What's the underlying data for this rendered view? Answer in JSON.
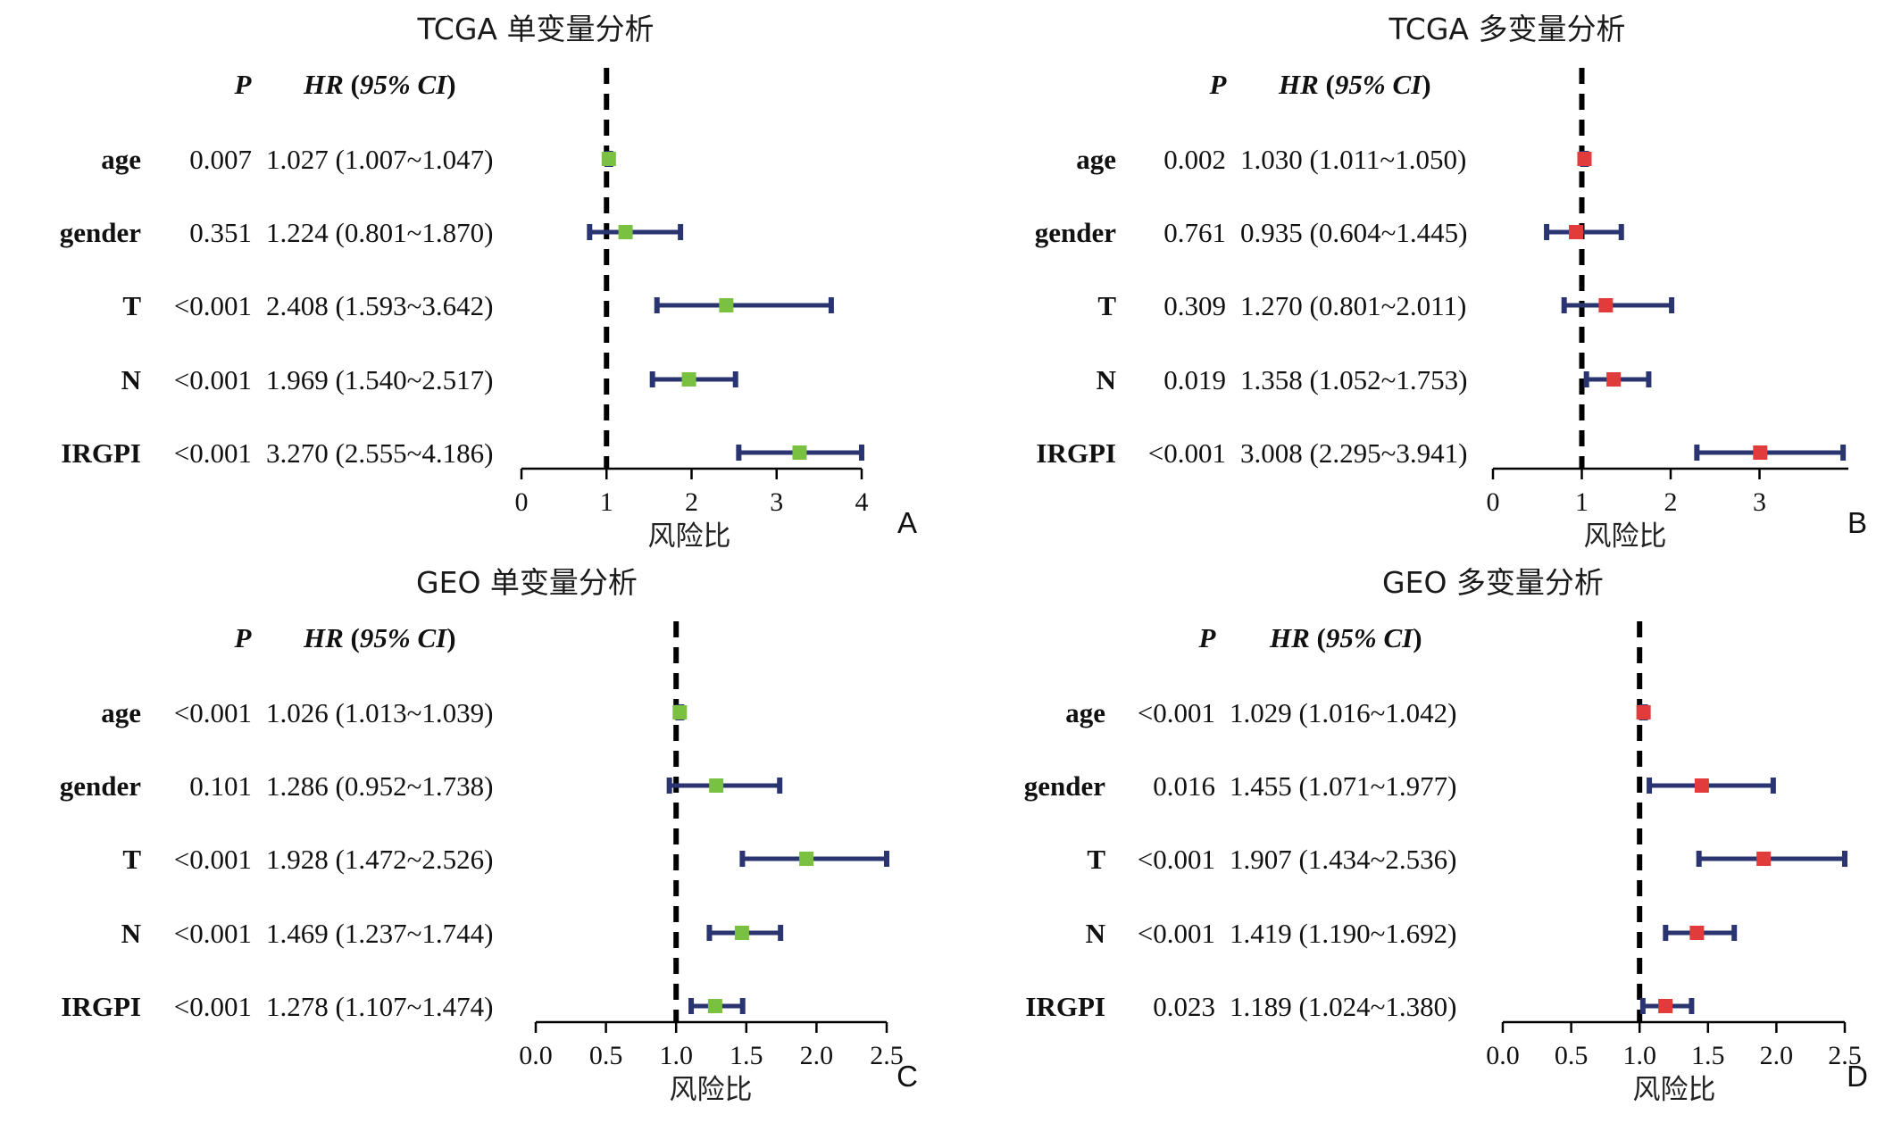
{
  "colors": {
    "ci_line": "#2a3470",
    "univariate_marker": "#7ac142",
    "multivariate_marker": "#e23b3b",
    "axis": "#000000",
    "reference_line": "#000000"
  },
  "chart_data": [
    {
      "type": "forest",
      "panel_label": "A",
      "title": "TCGA 单变量分析",
      "xlabel": "风险比",
      "header": {
        "p": "P",
        "hr": "HR",
        "ci": "95% CI"
      },
      "xlim": [
        0,
        4
      ],
      "ticks": [
        "0",
        "1",
        "2",
        "3",
        "4"
      ],
      "reference": 1,
      "marker": "univariate",
      "rows": [
        {
          "variable": "age",
          "p": "0.007",
          "hr_text": "1.027 (1.007~1.047)",
          "hr": 1.027,
          "lower": 1.007,
          "upper": 1.047
        },
        {
          "variable": "gender",
          "p": "0.351",
          "hr_text": "1.224 (0.801~1.870)",
          "hr": 1.224,
          "lower": 0.801,
          "upper": 1.87
        },
        {
          "variable": "T",
          "p": "<0.001",
          "hr_text": "2.408 (1.593~3.642)",
          "hr": 2.408,
          "lower": 1.593,
          "upper": 3.642
        },
        {
          "variable": "N",
          "p": "<0.001",
          "hr_text": "1.969 (1.540~2.517)",
          "hr": 1.969,
          "lower": 1.54,
          "upper": 2.517
        },
        {
          "variable": "IRGPI",
          "p": "<0.001",
          "hr_text": "3.270 (2.555~4.186)",
          "hr": 3.27,
          "lower": 2.555,
          "upper": 4.186
        }
      ]
    },
    {
      "type": "forest",
      "panel_label": "B",
      "title": "TCGA 多变量分析",
      "xlabel": "风险比",
      "header": {
        "p": "P",
        "hr": "HR",
        "ci": "95% CI"
      },
      "xlim": [
        0,
        4
      ],
      "ticks": [
        "0",
        "1",
        "2",
        "3"
      ],
      "reference": 1,
      "marker": "multivariate",
      "rows": [
        {
          "variable": "age",
          "p": "0.002",
          "hr_text": "1.030 (1.011~1.050)",
          "hr": 1.03,
          "lower": 1.011,
          "upper": 1.05
        },
        {
          "variable": "gender",
          "p": "0.761",
          "hr_text": "0.935 (0.604~1.445)",
          "hr": 0.935,
          "lower": 0.604,
          "upper": 1.445
        },
        {
          "variable": "T",
          "p": "0.309",
          "hr_text": "1.270 (0.801~2.011)",
          "hr": 1.27,
          "lower": 0.801,
          "upper": 2.011
        },
        {
          "variable": "N",
          "p": "0.019",
          "hr_text": "1.358 (1.052~1.753)",
          "hr": 1.358,
          "lower": 1.052,
          "upper": 1.753
        },
        {
          "variable": "IRGPI",
          "p": "<0.001",
          "hr_text": "3.008 (2.295~3.941)",
          "hr": 3.008,
          "lower": 2.295,
          "upper": 3.941
        }
      ]
    },
    {
      "type": "forest",
      "panel_label": "C",
      "title": "GEO 单变量分析",
      "xlabel": "风险比",
      "header": {
        "p": "P",
        "hr": "HR",
        "ci": "95% CI"
      },
      "xlim": [
        0,
        2.5
      ],
      "ticks": [
        "0.0",
        "0.5",
        "1.0",
        "1.5",
        "2.0",
        "2.5"
      ],
      "reference": 1,
      "marker": "univariate",
      "rows": [
        {
          "variable": "age",
          "p": "<0.001",
          "hr_text": "1.026 (1.013~1.039)",
          "hr": 1.026,
          "lower": 1.013,
          "upper": 1.039
        },
        {
          "variable": "gender",
          "p": "0.101",
          "hr_text": "1.286 (0.952~1.738)",
          "hr": 1.286,
          "lower": 0.952,
          "upper": 1.738
        },
        {
          "variable": "T",
          "p": "<0.001",
          "hr_text": "1.928 (1.472~2.526)",
          "hr": 1.928,
          "lower": 1.472,
          "upper": 2.526
        },
        {
          "variable": "N",
          "p": "<0.001",
          "hr_text": "1.469 (1.237~1.744)",
          "hr": 1.469,
          "lower": 1.237,
          "upper": 1.744
        },
        {
          "variable": "IRGPI",
          "p": "<0.001",
          "hr_text": "1.278 (1.107~1.474)",
          "hr": 1.278,
          "lower": 1.107,
          "upper": 1.474
        }
      ]
    },
    {
      "type": "forest",
      "panel_label": "D",
      "title": "GEO 多变量分析",
      "xlabel": "风险比",
      "header": {
        "p": "P",
        "hr": "HR",
        "ci": "95% CI"
      },
      "xlim": [
        0,
        2.5
      ],
      "ticks": [
        "0.0",
        "0.5",
        "1.0",
        "1.5",
        "2.0",
        "2.5"
      ],
      "reference": 1,
      "marker": "multivariate",
      "rows": [
        {
          "variable": "age",
          "p": "<0.001",
          "hr_text": "1.029 (1.016~1.042)",
          "hr": 1.029,
          "lower": 1.016,
          "upper": 1.042
        },
        {
          "variable": "gender",
          "p": "0.016",
          "hr_text": "1.455 (1.071~1.977)",
          "hr": 1.455,
          "lower": 1.071,
          "upper": 1.977
        },
        {
          "variable": "T",
          "p": "<0.001",
          "hr_text": "1.907 (1.434~2.536)",
          "hr": 1.907,
          "lower": 1.434,
          "upper": 2.536
        },
        {
          "variable": "N",
          "p": "<0.001",
          "hr_text": "1.419 (1.190~1.692)",
          "hr": 1.419,
          "lower": 1.19,
          "upper": 1.692
        },
        {
          "variable": "IRGPI",
          "p": "0.023",
          "hr_text": "1.189 (1.024~1.380)",
          "hr": 1.189,
          "lower": 1.024,
          "upper": 1.38
        }
      ]
    }
  ]
}
